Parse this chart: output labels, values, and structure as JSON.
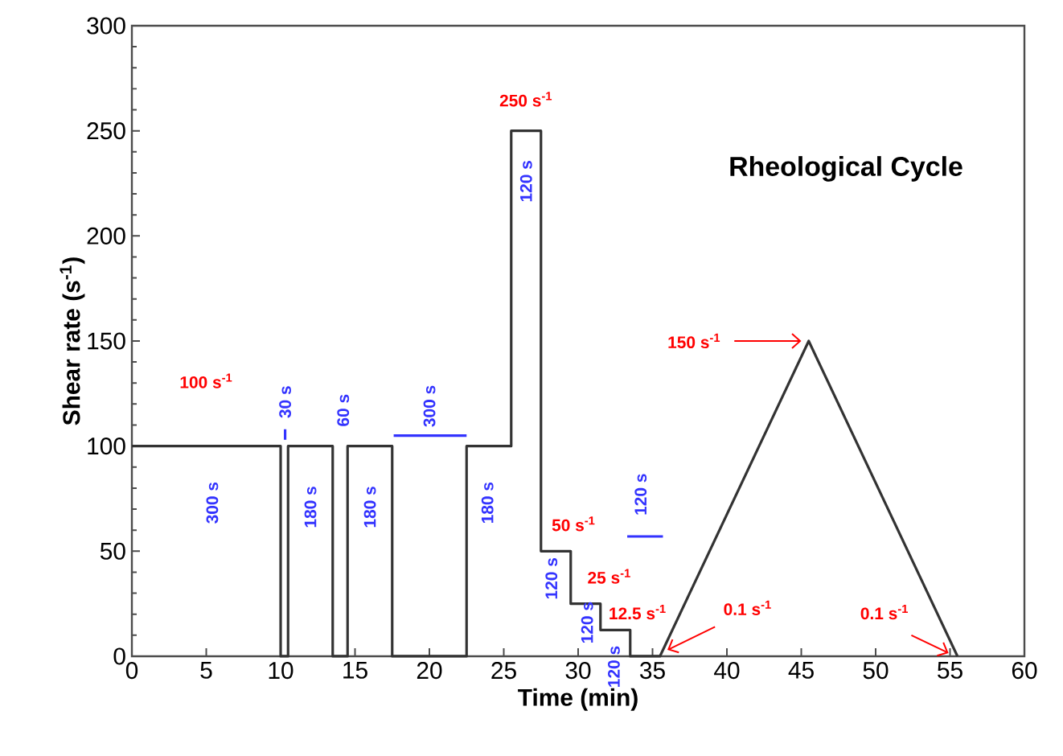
{
  "chart_data": {
    "type": "line",
    "title": "Rheological Cycle",
    "xlabel": "Time (min)",
    "ylabel": "Shear rate (s$^{-1}$)",
    "xlim": [
      0,
      60
    ],
    "ylim": [
      0,
      300
    ],
    "xticks": [
      0,
      5,
      10,
      15,
      20,
      25,
      30,
      35,
      40,
      45,
      50,
      55,
      60
    ],
    "yticks": [
      0,
      50,
      100,
      150,
      200,
      250,
      300
    ],
    "grid": false,
    "marker": "none",
    "line_style": "solid",
    "series": [
      {
        "color": "#333333",
        "x": [
          0,
          10,
          10,
          10.5,
          10.5,
          13.5,
          13.5,
          14.5,
          14.5,
          17.5,
          17.5,
          22.5,
          22.5,
          25.5,
          25.5,
          27.5,
          27.5,
          29.5,
          29.5,
          31.5,
          31.5,
          33.5,
          33.5,
          35.5,
          45.5,
          55.5
        ],
        "values": [
          100,
          100,
          0,
          0,
          100,
          100,
          0,
          0,
          100,
          100,
          0,
          0,
          100,
          100,
          250,
          250,
          50,
          50,
          25,
          25,
          12.5,
          12.5,
          0,
          0,
          150,
          0
        ]
      },
      {
        "color": "#3333ff",
        "x": [
          17.6,
          22.5
        ],
        "values": [
          105,
          105
        ]
      },
      {
        "color": "#3333ff",
        "x": [
          10.3,
          10.3
        ],
        "values": [
          103,
          108
        ]
      },
      {
        "color": "#3333ff",
        "x": [
          33.3,
          35.7
        ],
        "values": [
          57,
          57
        ]
      }
    ],
    "annotations": [
      "100 s$^{-1}$",
      "300 s",
      "30 s",
      "180 s",
      "60 s",
      "180 s",
      "300 s",
      "180 s",
      "250 s$^{-1}$",
      "120 s",
      "50 s$^{-1}$",
      "120 s",
      "25 s$^{-1}$",
      "120 s",
      "12.5 s$^{-1}$",
      "120 s",
      "120 s",
      {
        "text": "150 s$^{-1}$",
        "x": 45.5,
        "y": 150
      },
      {
        "text": "0.1 s$^{-1}$",
        "x": 35.5,
        "y": 0
      },
      {
        "text": "0.1 s$^{-1}$",
        "x": 55.5,
        "y": 0
      }
    ]
  }
}
